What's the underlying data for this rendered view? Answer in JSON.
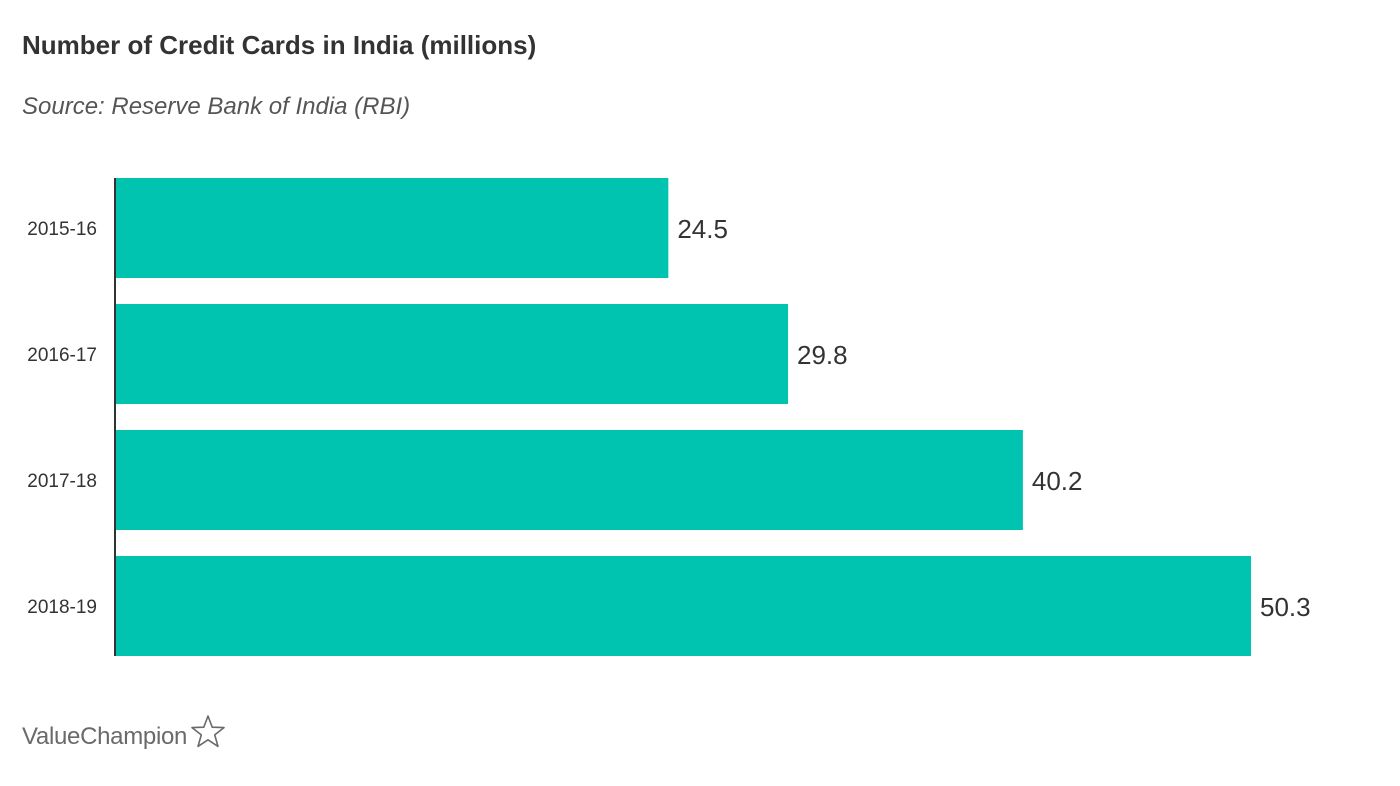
{
  "chart_data": {
    "type": "bar",
    "orientation": "horizontal",
    "title": "Number of Credit Cards in India (millions)",
    "subtitle": "Source: Reserve Bank of India (RBI)",
    "categories": [
      "2015-16",
      "2016-17",
      "2017-18",
      "2018-19"
    ],
    "values": [
      24.5,
      29.8,
      40.2,
      50.3
    ],
    "value_labels": [
      "24.5",
      "29.8",
      "40.2",
      "50.3"
    ],
    "xlim": [
      0,
      50.3
    ],
    "grid": false,
    "bar_color": "#00c4b0"
  },
  "branding": {
    "logo_text": "ValueChampion",
    "logo_icon": "star-outline-icon"
  },
  "colors": {
    "text": "#333333",
    "subtitle": "#555555",
    "axis": "#333333",
    "logo": "#6a6a6a"
  }
}
